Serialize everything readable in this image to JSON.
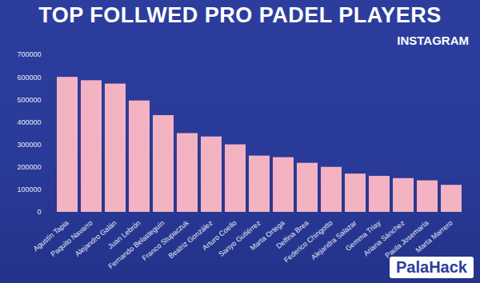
{
  "chart_data": {
    "type": "bar",
    "title": "TOP FOLLWED PRO PADEL PLAYERS",
    "subtitle": "INSTAGRAM",
    "source": "PalaHack",
    "categories": [
      "Agustín Tapia",
      "Paquito Navarro",
      "Alejandro Galán",
      "Juan Lebrón",
      "Fernando Belasteguín",
      "Franco Stupaczuk",
      "Beatriz González",
      "Arturo Coello",
      "Sanyo Gutiérrez",
      "Marta Ortega",
      "Delfina Brea",
      "Federico Chingotto",
      "Alejandra Salazar",
      "Gemma Triay",
      "Ariana Sánchez",
      "Paula Josemaría",
      "Marta Marrero"
    ],
    "values": [
      600000,
      585000,
      570000,
      495000,
      430000,
      350000,
      335000,
      300000,
      250000,
      243000,
      218000,
      200000,
      170000,
      160000,
      150000,
      140000,
      120000
    ],
    "color": "#f4b3c2",
    "ylim": [
      0,
      700000
    ],
    "yticks": [
      0,
      100000,
      200000,
      300000,
      400000,
      500000,
      600000,
      700000
    ],
    "grid": false
  }
}
